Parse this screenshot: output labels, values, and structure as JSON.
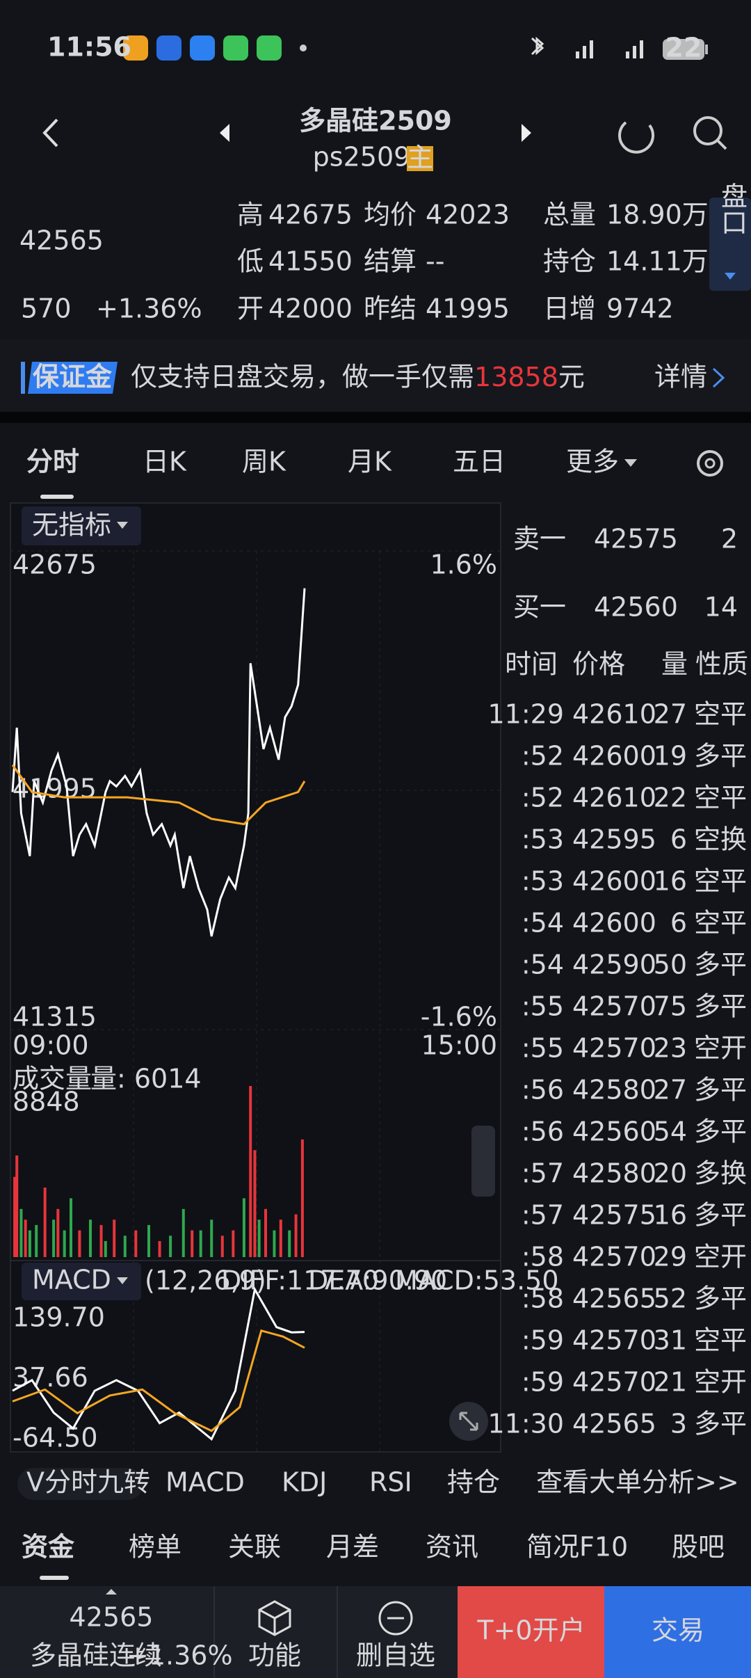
{
  "status": {
    "time": "11:56",
    "battery": "22"
  },
  "header": {
    "title": "多晶硅2509",
    "code": "ps2509",
    "badge": "主"
  },
  "quote": {
    "price": 42565,
    "change": 570,
    "change_pct": "+1.36%",
    "stats": [
      {
        "label": "高",
        "value": 42675,
        "color": "#e8353b"
      },
      {
        "label": "低",
        "value": 41550,
        "color": "#39b554"
      },
      {
        "label": "开",
        "value": 42000,
        "color": "#e8353b"
      },
      {
        "label": "均价",
        "value": 42023,
        "color": "#ffffff"
      },
      {
        "label": "结算",
        "value": "--",
        "color": "#ffffff"
      },
      {
        "label": "昨结",
        "value": 41995,
        "color": "#ffffff"
      },
      {
        "label": "总量",
        "value": "18.90万",
        "color": "#ffffff"
      },
      {
        "label": "持仓",
        "value": "14.11万",
        "color": "#ffffff"
      },
      {
        "label": "日增",
        "value": 9742,
        "color": "#ffffff"
      }
    ],
    "panel_button": "盘口"
  },
  "banner": {
    "badge": "保证金",
    "text": "仅支持日盘交易，做一手仅需",
    "amount": 13858,
    "unit": "元",
    "link": "详情"
  },
  "tabs": [
    "分时",
    "日K",
    "周K",
    "月K",
    "五日",
    "更多"
  ],
  "chart_data": [
    {
      "type": "line",
      "indicator": "无指标",
      "xlim": [
        0,
        225
      ],
      "xticks": [
        {
          "value": 0,
          "label": "09:00"
        },
        {
          "value": 225,
          "label": "15:00"
        }
      ],
      "ylim": [
        41315,
        42675
      ],
      "yticks": [
        41315,
        41995,
        42675
      ],
      "y2lim": [
        -1.6,
        1.6
      ],
      "y2ticks": [
        {
          "value": -1.6,
          "label": "-1.6%"
        },
        {
          "value": 1.6,
          "label": "1.6%"
        }
      ],
      "series": [
        {
          "color": "#ffffff",
          "x": [
            0,
            2,
            4,
            8,
            10,
            14,
            18,
            21,
            25,
            28,
            31,
            34,
            38,
            41,
            43,
            45,
            48,
            52,
            55,
            59,
            62,
            65,
            69,
            73,
            75,
            79,
            82,
            86,
            90,
            92,
            96,
            100,
            103,
            107,
            109,
            110,
            113,
            116,
            119,
            123,
            126,
            129,
            132,
            135
          ],
          "values": [
            41990,
            42173,
            41930,
            41808,
            42021,
            41960,
            42051,
            42097,
            42006,
            41808,
            41869,
            41899,
            41838,
            41930,
            41990,
            42021,
            42006,
            42036,
            42006,
            42051,
            41930,
            41869,
            41899,
            41838,
            41869,
            41717,
            41808,
            41717,
            41656,
            41580,
            41686,
            41747,
            41717,
            41838,
            41930,
            42356,
            42234,
            42112,
            42173,
            42082,
            42203,
            42234,
            42295,
            42569
          ]
        },
        {
          "color": "#f5a623",
          "x": [
            0,
            9,
            24,
            53,
            77,
            92,
            107,
            117,
            132,
            135
          ],
          "values": [
            42067,
            41990,
            41975,
            41975,
            41960,
            41914,
            41899,
            41960,
            41990,
            42021
          ]
        }
      ]
    },
    {
      "type": "bar",
      "title": "成交量",
      "label": "量: 6014",
      "ylim": [
        0,
        8848
      ],
      "yticks": [
        8848
      ],
      "x": [
        1,
        2,
        4,
        6,
        8,
        11,
        15,
        19,
        21,
        24,
        27,
        31,
        36,
        41,
        43,
        47,
        52,
        57,
        63,
        68,
        73,
        79,
        83,
        87,
        92,
        97,
        102,
        107,
        110,
        112,
        114,
        117,
        121,
        124,
        128,
        131,
        134
      ],
      "values": [
        4148,
        5254,
        2489,
        1936,
        1383,
        1659,
        3595,
        1936,
        2489,
        1383,
        3042,
        1383,
        1936,
        1659,
        830,
        1936,
        1106,
        1383,
        1659,
        830,
        1106,
        2489,
        1383,
        1383,
        1936,
        1106,
        1383,
        3042,
        8848,
        5530,
        1936,
        2489,
        1383,
        1936,
        1383,
        2212,
        6083
      ],
      "colors": [
        "#e8353b",
        "#e8353b",
        "#2fa84f",
        "#e8353b",
        "#2fa84f",
        "#2fa84f",
        "#e8353b",
        "#2fa84f",
        "#e8353b",
        "#2fa84f",
        "#2fa84f",
        "#e8353b",
        "#2fa84f",
        "#e8353b",
        "#2fa84f",
        "#e8353b",
        "#2fa84f",
        "#e8353b",
        "#2fa84f",
        "#e8353b",
        "#2fa84f",
        "#2fa84f",
        "#e8353b",
        "#2fa84f",
        "#2fa84f",
        "#e8353b",
        "#e8353b",
        "#2fa84f",
        "#e8353b",
        "#e8353b",
        "#2fa84f",
        "#e8353b",
        "#2fa84f",
        "#e8353b",
        "#2fa84f",
        "#e8353b",
        "#e8353b"
      ]
    },
    {
      "type": "line",
      "title": "MACD",
      "params": "(12,26,9)",
      "ylim": [
        -64.5,
        139.7
      ],
      "yticks": [
        {
          "value": 139.7,
          "label": "139.70"
        },
        37.66,
        {
          "value": -64.5,
          "label": "-64.50"
        }
      ],
      "series": [
        {
          "label": "DIFF:117.70",
          "color": "#ffffff",
          "x": [
            0,
            9,
            19,
            28,
            38,
            48,
            58,
            68,
            77,
            92,
            103,
            112,
            122,
            129,
            135
          ],
          "values": [
            18,
            36,
            -19,
            -46,
            18,
            36,
            18,
            -37,
            -19,
            -64,
            18,
            190,
            126,
            117,
            117.7
          ]
        },
        {
          "label": "DEA:90.90",
          "color": "#f5a623",
          "x": [
            0,
            15,
            30,
            45,
            60,
            75,
            92,
            105,
            115,
            125,
            135
          ],
          "values": [
            0,
            20,
            -20,
            10,
            20,
            -20,
            -50,
            -10,
            120,
            110,
            90.9
          ]
        },
        {
          "label": "MACD:53.50",
          "color": "#4a8df0"
        }
      ]
    }
  ],
  "order_book": [
    {
      "side": "卖一",
      "price": 42575,
      "qty": 2
    },
    {
      "side": "买一",
      "price": 42560,
      "qty": 14
    }
  ],
  "trades": {
    "headers": [
      "时间",
      "价格",
      "量",
      "性质"
    ],
    "rows": [
      {
        "time": "11:29",
        "price": 42610,
        "qty": 27,
        "type": "空平",
        "color": "#e8353b"
      },
      {
        "time": ":52",
        "price": 42600,
        "qty": 19,
        "type": "多平",
        "color": "#39b554"
      },
      {
        "time": ":52",
        "price": 42610,
        "qty": 22,
        "type": "空平",
        "color": "#e8353b"
      },
      {
        "time": ":53",
        "price": 42595,
        "qty": 6,
        "type": "空换",
        "color": "#39b554"
      },
      {
        "time": ":53",
        "price": 42600,
        "qty": 16,
        "type": "空平",
        "color": "#e8353b"
      },
      {
        "time": ":54",
        "price": 42600,
        "qty": 6,
        "type": "空平",
        "color": "#e8353b"
      },
      {
        "time": ":54",
        "price": 42590,
        "qty": 50,
        "type": "多平",
        "color": "#39b554"
      },
      {
        "time": ":55",
        "price": 42570,
        "qty": 75,
        "type": "多平",
        "color": "#39b554"
      },
      {
        "time": ":55",
        "price": 42570,
        "qty": 23,
        "type": "空开",
        "color": "#39b554"
      },
      {
        "time": ":56",
        "price": 42580,
        "qty": 27,
        "type": "多平",
        "color": "#39b554"
      },
      {
        "time": ":56",
        "price": 42560,
        "qty": 54,
        "type": "多平",
        "color": "#39b554"
      },
      {
        "time": ":57",
        "price": 42580,
        "qty": 20,
        "type": "多换",
        "color": "#e8353b"
      },
      {
        "time": ":57",
        "price": 42575,
        "qty": 16,
        "type": "多平",
        "color": "#39b554"
      },
      {
        "time": ":58",
        "price": 42570,
        "qty": 29,
        "type": "空开",
        "color": "#39b554"
      },
      {
        "time": ":58",
        "price": 42565,
        "qty": 52,
        "type": "多平",
        "color": "#39b554"
      },
      {
        "time": ":59",
        "price": 42570,
        "qty": 31,
        "type": "空平",
        "color": "#e8353b"
      },
      {
        "time": ":59",
        "price": 42570,
        "qty": 21,
        "type": "空开",
        "color": "#39b554"
      },
      {
        "time": "11:30",
        "price": 42565,
        "qty": 3,
        "type": "多平",
        "color": "#39b554"
      }
    ]
  },
  "indicators": [
    "V分时九转",
    "MACD",
    "KDJ",
    "RSI",
    "持仓"
  ],
  "big_order_link": "查看大单分析>>",
  "bottom_tabs": [
    "资金",
    "榜单",
    "关联",
    "月差",
    "资讯",
    "简况F10",
    "股吧"
  ],
  "bottom_bar": {
    "price": 42565,
    "name": "多晶硅连续",
    "change_pct": "+1.36%",
    "function": "功能",
    "remove": "删自选",
    "open_account": "T+0开户",
    "trade": "交易"
  }
}
